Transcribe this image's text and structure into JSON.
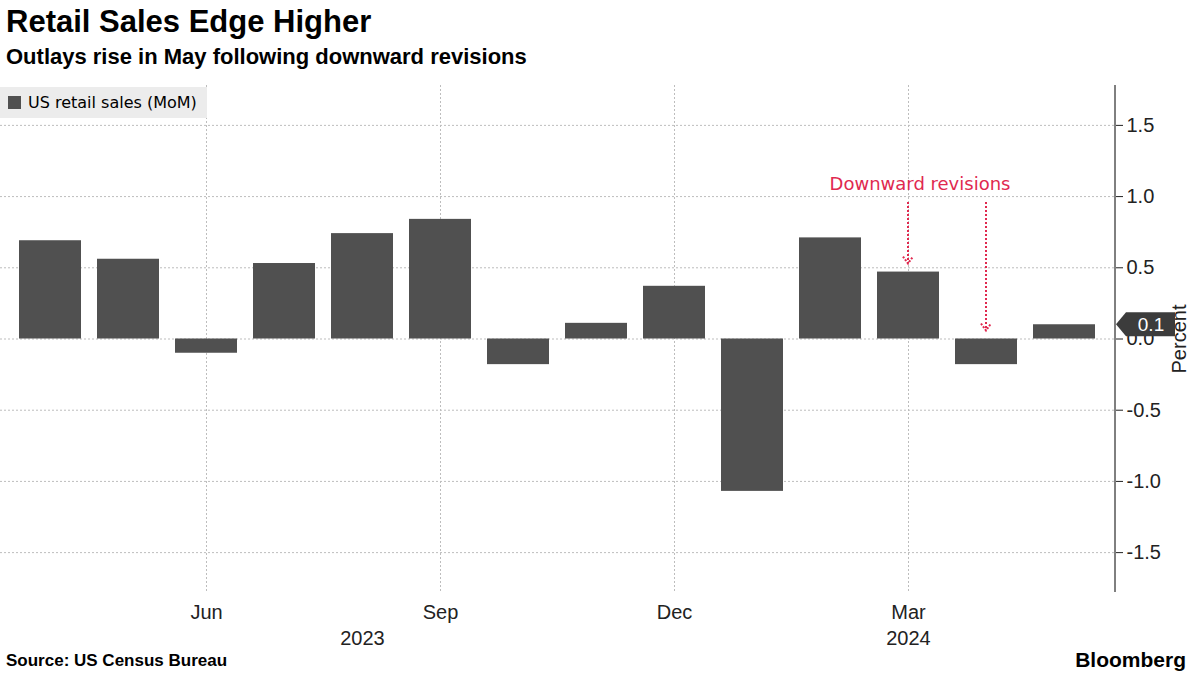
{
  "chart_data": {
    "type": "bar",
    "title": "Retail Sales Edge Higher",
    "subtitle": "Outlays rise in May following downward revisions",
    "source": "Source: US Census Bureau",
    "credit": "Bloomberg",
    "y_label": "Percent",
    "categories": [
      null,
      null,
      "Jun",
      null,
      null,
      "Sep",
      null,
      null,
      "Dec",
      null,
      null,
      "Mar",
      null,
      null
    ],
    "year_ticks": [
      {
        "value": 4,
        "label": "2023"
      },
      {
        "value": 11,
        "label": "2024"
      }
    ],
    "series": [
      {
        "name": "US retail sales (MoM)",
        "color": "#505050",
        "values": [
          0.69,
          0.56,
          -0.1,
          0.53,
          0.74,
          0.84,
          -0.18,
          0.11,
          0.37,
          -1.07,
          0.71,
          0.47,
          -0.18,
          0.1
        ]
      }
    ],
    "ylim": [
      -1.78,
      1.78
    ],
    "yticks": [
      1.5,
      {
        "value": 1,
        "label": "1.0"
      },
      0.5,
      {
        "value": 0,
        "label": "0.0"
      },
      -0.5,
      {
        "value": -1,
        "label": "-1.0"
      },
      -1.5
    ],
    "grid": true,
    "legend": "top-left",
    "annotations": [
      {
        "text": "Downward revisions",
        "targets": [
          11,
          12
        ],
        "color": "#e0294f"
      },
      {
        "text": "0.1",
        "value": 0.1
      }
    ]
  }
}
